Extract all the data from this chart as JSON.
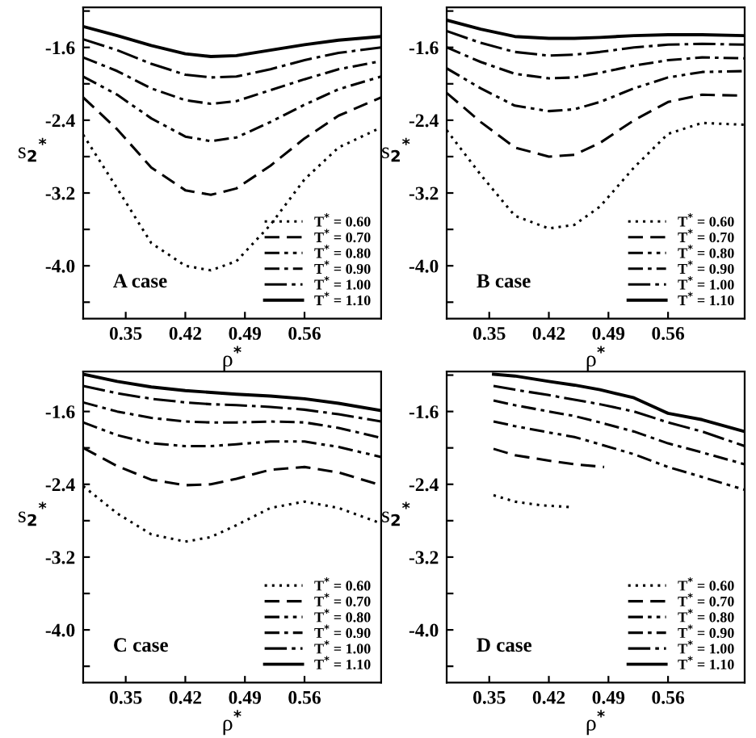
{
  "chart_data": [
    {
      "type": "line",
      "xlabel": "ρ$^{*}$",
      "ylabel": "s$_{2}$$^{*}$",
      "annotations": [
        "A case"
      ],
      "xlim": [
        0.3,
        0.65
      ],
      "ylim": [
        -4.58,
        -1.16
      ],
      "xticks": [
        0.35,
        0.42,
        0.49,
        0.56
      ],
      "yticks": [
        {
          "value": -1.2,
          "label": null
        },
        -1.6,
        {
          "value": -2.0,
          "label": null
        },
        -2.4,
        {
          "value": -2.8,
          "label": null
        },
        -3.2,
        {
          "value": -3.6,
          "label": null
        },
        {
          "value": -4.0,
          "label": "-4.0"
        },
        {
          "value": -4.4,
          "label": null
        }
      ],
      "legend": "bottom right",
      "grid": false,
      "x": [
        0.3,
        0.34,
        0.38,
        0.42,
        0.45,
        0.48,
        0.52,
        0.56,
        0.6,
        0.65
      ],
      "series": [
        {
          "name": "T$^{*}$ = 0.60",
          "color": "#000000",
          "line_style": "dotted",
          "values": [
            -2.56,
            -3.15,
            -3.75,
            -4.0,
            -4.05,
            -3.95,
            -3.55,
            -3.05,
            -2.7,
            -2.48
          ]
        },
        {
          "name": "T$^{*}$ = 0.70",
          "color": "#000000",
          "line_style": "dashed",
          "values": [
            -2.15,
            -2.5,
            -2.92,
            -3.17,
            -3.22,
            -3.15,
            -2.9,
            -2.6,
            -2.35,
            -2.15
          ]
        },
        {
          "name": "T$^{*}$ = 0.80",
          "color": "#000000",
          "line_style": "dashdotdot",
          "values": [
            -1.92,
            -2.12,
            -2.38,
            -2.58,
            -2.63,
            -2.59,
            -2.42,
            -2.23,
            -2.06,
            -1.92
          ]
        },
        {
          "name": "T$^{*}$ = 0.90",
          "color": "#000000",
          "line_style": "dashdot",
          "values": [
            -1.71,
            -1.86,
            -2.05,
            -2.18,
            -2.22,
            -2.19,
            -2.07,
            -1.95,
            -1.84,
            -1.75
          ]
        },
        {
          "name": "T$^{*}$ = 1.00",
          "color": "#000000",
          "line_style": "longdashdot",
          "values": [
            -1.51,
            -1.63,
            -1.78,
            -1.9,
            -1.93,
            -1.92,
            -1.84,
            -1.74,
            -1.66,
            -1.6
          ]
        },
        {
          "name": "T$^{*}$ = 1.10",
          "color": "#000000",
          "line_style": "solid",
          "values": [
            -1.37,
            -1.47,
            -1.58,
            -1.67,
            -1.7,
            -1.69,
            -1.63,
            -1.57,
            -1.52,
            -1.48
          ]
        }
      ]
    },
    {
      "type": "line",
      "xlabel": "ρ$^{*}$",
      "ylabel": "s$_{2}$$^{*}$",
      "annotations": [
        "B case"
      ],
      "xlim": [
        0.3,
        0.65
      ],
      "ylim": [
        -4.58,
        -1.16
      ],
      "xticks": [
        0.35,
        0.42,
        0.49,
        0.56
      ],
      "yticks": [
        {
          "value": -1.2,
          "label": null
        },
        -1.6,
        {
          "value": -2.0,
          "label": null
        },
        -2.4,
        {
          "value": -2.8,
          "label": null
        },
        -3.2,
        {
          "value": -3.6,
          "label": null
        },
        {
          "value": -4.0,
          "label": "-4.0"
        },
        {
          "value": -4.4,
          "label": null
        }
      ],
      "legend": "bottom right",
      "grid": false,
      "x": [
        0.3,
        0.34,
        0.38,
        0.42,
        0.45,
        0.48,
        0.52,
        0.56,
        0.6,
        0.65
      ],
      "series": [
        {
          "name": "T$^{*}$ = 0.60",
          "color": "#000000",
          "line_style": "dotted",
          "values": [
            -2.51,
            -3.0,
            -3.45,
            -3.59,
            -3.55,
            -3.35,
            -2.92,
            -2.55,
            -2.43,
            -2.45
          ]
        },
        {
          "name": "T$^{*}$ = 0.70",
          "color": "#000000",
          "line_style": "dashed",
          "values": [
            -2.1,
            -2.42,
            -2.7,
            -2.8,
            -2.78,
            -2.65,
            -2.4,
            -2.2,
            -2.12,
            -2.13
          ]
        },
        {
          "name": "T$^{*}$ = 0.80",
          "color": "#000000",
          "line_style": "dashdotdot",
          "values": [
            -1.83,
            -2.05,
            -2.24,
            -2.3,
            -2.28,
            -2.2,
            -2.05,
            -1.93,
            -1.87,
            -1.86
          ]
        },
        {
          "name": "T$^{*}$ = 0.90",
          "color": "#000000",
          "line_style": "dashdot",
          "values": [
            -1.6,
            -1.76,
            -1.89,
            -1.94,
            -1.93,
            -1.88,
            -1.8,
            -1.74,
            -1.71,
            -1.72
          ]
        },
        {
          "name": "T$^{*}$ = 1.00",
          "color": "#000000",
          "line_style": "longdashdot",
          "values": [
            -1.42,
            -1.55,
            -1.65,
            -1.69,
            -1.68,
            -1.65,
            -1.6,
            -1.57,
            -1.56,
            -1.57
          ]
        },
        {
          "name": "T$^{*}$ = 1.10",
          "color": "#000000",
          "line_style": "solid",
          "values": [
            -1.3,
            -1.4,
            -1.48,
            -1.5,
            -1.5,
            -1.49,
            -1.47,
            -1.46,
            -1.46,
            -1.47
          ]
        }
      ]
    },
    {
      "type": "line",
      "xlabel": "ρ$^{*}$",
      "ylabel": "s$_{2}$$^{*}$",
      "annotations": [
        "C case"
      ],
      "xlim": [
        0.3,
        0.65
      ],
      "ylim": [
        -4.58,
        -1.16
      ],
      "xticks": [
        0.35,
        0.42,
        0.49,
        0.56
      ],
      "yticks": [
        {
          "value": -1.2,
          "label": null
        },
        -1.6,
        {
          "value": -2.0,
          "label": null
        },
        -2.4,
        {
          "value": -2.8,
          "label": null
        },
        -3.2,
        {
          "value": -3.6,
          "label": null
        },
        {
          "value": -4.0,
          "label": "-4.0"
        },
        {
          "value": -4.4,
          "label": null
        }
      ],
      "legend": "bottom right",
      "grid": false,
      "x": [
        0.3,
        0.34,
        0.38,
        0.42,
        0.45,
        0.48,
        0.52,
        0.56,
        0.6,
        0.65
      ],
      "series": [
        {
          "name": "T$^{*}$ = 0.60",
          "color": "#000000",
          "line_style": "dotted",
          "values": [
            -2.42,
            -2.72,
            -2.95,
            -3.03,
            -2.98,
            -2.85,
            -2.66,
            -2.59,
            -2.66,
            -2.83
          ]
        },
        {
          "name": "T$^{*}$ = 0.70",
          "color": "#000000",
          "line_style": "dashed",
          "values": [
            -2.0,
            -2.2,
            -2.35,
            -2.41,
            -2.4,
            -2.34,
            -2.24,
            -2.21,
            -2.27,
            -2.41
          ]
        },
        {
          "name": "T$^{*}$ = 0.80",
          "color": "#000000",
          "line_style": "dashdotdot",
          "values": [
            -1.72,
            -1.86,
            -1.95,
            -1.98,
            -1.98,
            -1.96,
            -1.93,
            -1.93,
            -1.99,
            -2.1
          ]
        },
        {
          "name": "T$^{*}$ = 0.90",
          "color": "#000000",
          "line_style": "dashdot",
          "values": [
            -1.5,
            -1.6,
            -1.67,
            -1.71,
            -1.72,
            -1.72,
            -1.71,
            -1.72,
            -1.78,
            -1.89
          ]
        },
        {
          "name": "T$^{*}$ = 1.00",
          "color": "#000000",
          "line_style": "longdashdot",
          "values": [
            -1.32,
            -1.4,
            -1.46,
            -1.5,
            -1.52,
            -1.53,
            -1.55,
            -1.58,
            -1.63,
            -1.71
          ]
        },
        {
          "name": "T$^{*}$ = 1.10",
          "color": "#000000",
          "line_style": "solid",
          "values": [
            -1.19,
            -1.27,
            -1.33,
            -1.37,
            -1.39,
            -1.41,
            -1.43,
            -1.46,
            -1.51,
            -1.59
          ]
        }
      ]
    },
    {
      "type": "line",
      "xlabel": "ρ$^{*}$",
      "ylabel": "s$_{2}$$^{*}$",
      "annotations": [
        "D case"
      ],
      "xlim": [
        0.3,
        0.65
      ],
      "ylim": [
        -4.58,
        -1.16
      ],
      "xticks": [
        0.35,
        0.42,
        0.49,
        0.56
      ],
      "yticks": [
        {
          "value": -1.2,
          "label": null
        },
        -1.6,
        {
          "value": -2.0,
          "label": null
        },
        -2.4,
        {
          "value": -2.8,
          "label": null
        },
        -3.2,
        {
          "value": -3.6,
          "label": null
        },
        {
          "value": -4.0,
          "label": "-4.0"
        },
        {
          "value": -4.4,
          "label": null
        }
      ],
      "legend": "bottom right",
      "grid": false,
      "x": [
        0.355,
        0.38,
        0.42,
        0.45,
        0.48,
        0.52,
        0.56,
        0.6,
        0.65
      ],
      "series": [
        {
          "name": "T$^{*}$ = 0.60",
          "color": "#000000",
          "line_style": "dotted",
          "x": [
            0.355,
            0.38,
            0.41,
            0.445
          ],
          "values": [
            -2.52,
            -2.59,
            -2.63,
            -2.65
          ]
        },
        {
          "name": "T$^{*}$ = 0.70",
          "color": "#000000",
          "line_style": "dashed",
          "x": [
            0.355,
            0.38,
            0.42,
            0.45,
            0.485
          ],
          "values": [
            -2.01,
            -2.08,
            -2.14,
            -2.18,
            -2.21
          ]
        },
        {
          "name": "T$^{*}$ = 0.80",
          "color": "#000000",
          "line_style": "dashdotdot",
          "values": [
            -1.71,
            -1.76,
            -1.83,
            -1.88,
            -1.96,
            -2.07,
            -2.21,
            -2.32,
            -2.46
          ]
        },
        {
          "name": "T$^{*}$ = 0.90",
          "color": "#000000",
          "line_style": "dashdot",
          "values": [
            -1.48,
            -1.53,
            -1.6,
            -1.65,
            -1.72,
            -1.82,
            -1.95,
            -2.05,
            -2.18
          ]
        },
        {
          "name": "T$^{*}$ = 1.00",
          "color": "#000000",
          "line_style": "longdashdot",
          "values": [
            -1.32,
            -1.36,
            -1.42,
            -1.47,
            -1.52,
            -1.6,
            -1.72,
            -1.82,
            -1.98
          ]
        },
        {
          "name": "T$^{*}$ = 1.10",
          "color": "#000000",
          "line_style": "solid",
          "values": [
            -1.19,
            -1.21,
            -1.27,
            -1.31,
            -1.36,
            -1.45,
            -1.62,
            -1.69,
            -1.82
          ]
        }
      ]
    }
  ]
}
